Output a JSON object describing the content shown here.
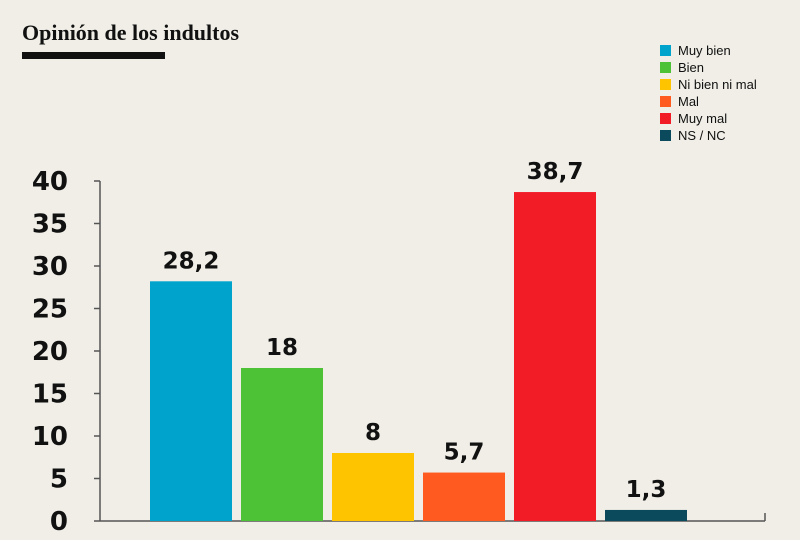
{
  "chart_data": {
    "type": "bar",
    "title": "Opinión de los indultos",
    "xlabel": "",
    "ylabel": "",
    "ylim": [
      0,
      40
    ],
    "yticks": [
      0,
      5,
      10,
      15,
      20,
      25,
      30,
      35,
      40
    ],
    "grid": false,
    "legend_position": "top-right",
    "categories": [
      "Muy bien",
      "Bien",
      "Ni bien ni mal",
      "Mal",
      "Muy mal",
      "NS / NC"
    ],
    "values": [
      28.2,
      18,
      8,
      5.7,
      38.7,
      1.3
    ],
    "value_labels": [
      "28,2",
      "18",
      "8",
      "5,7",
      "38,7",
      "1,3"
    ],
    "colors": [
      "#00a3cc",
      "#4dc236",
      "#ffc400",
      "#ff5a1f",
      "#f21c27",
      "#0b4a5c"
    ]
  }
}
